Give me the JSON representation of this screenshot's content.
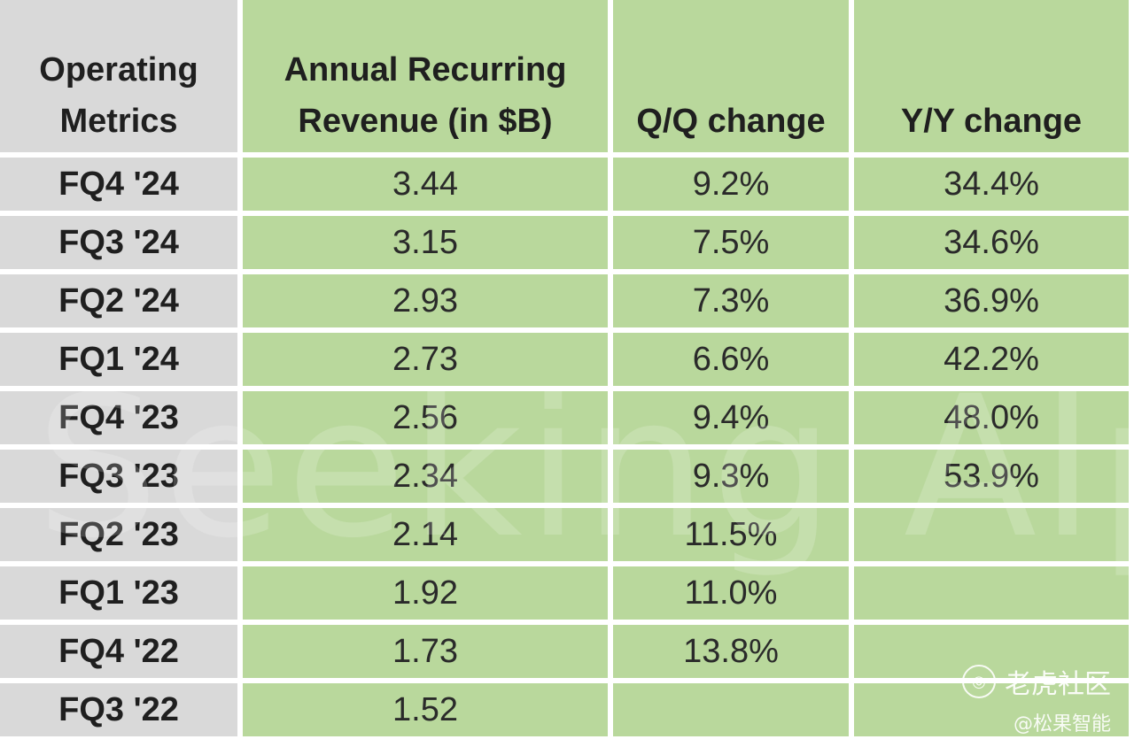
{
  "table": {
    "headers": [
      [
        "Operating",
        "Metrics"
      ],
      [
        "Annual Recurring",
        "Revenue (in $B)"
      ],
      [
        "",
        "Q/Q change"
      ],
      [
        "",
        "Y/Y change"
      ]
    ],
    "rows": [
      [
        "FQ4 '24",
        "3.44",
        "9.2%",
        "34.4%"
      ],
      [
        "FQ3 '24",
        "3.15",
        "7.5%",
        "34.6%"
      ],
      [
        "FQ2 '24",
        "2.93",
        "7.3%",
        "36.9%"
      ],
      [
        "FQ1 '24",
        "2.73",
        "6.6%",
        "42.2%"
      ],
      [
        "FQ4 '23",
        "2.56",
        "9.4%",
        "48.0%"
      ],
      [
        "FQ3 '23",
        "2.34",
        "9.3%",
        "53.9%"
      ],
      [
        "FQ2 '23",
        "2.14",
        "11.5%",
        ""
      ],
      [
        "FQ1 '23",
        "1.92",
        "11.0%",
        ""
      ],
      [
        "FQ4 '22",
        "1.73",
        "13.8%",
        ""
      ],
      [
        "FQ3 '22",
        "1.52",
        "",
        ""
      ]
    ]
  },
  "watermark": "Seeking Alpha",
  "brand": {
    "name": "老虎社区",
    "handle": "@松果智能",
    "logo_icon": "tiger-logo-icon"
  },
  "colors": {
    "cell_green": "#b9d89c",
    "label_gray": "#d9d9d9",
    "grid_white": "#ffffff"
  }
}
